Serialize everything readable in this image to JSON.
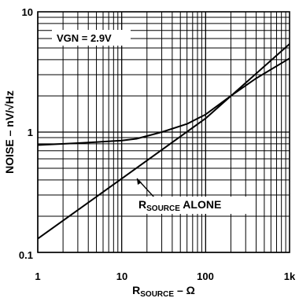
{
  "chart_data": {
    "type": "line",
    "x_scale": "log",
    "y_scale": "log",
    "xlim": [
      1,
      1000
    ],
    "ylim": [
      0.1,
      10
    ],
    "grid": true,
    "x_ticks": [
      "1",
      "10",
      "100",
      "1k"
    ],
    "y_ticks": [
      "0.1",
      "1",
      "10"
    ],
    "xlabel": {
      "main": "R",
      "sub": "SOURCE",
      "suffix": " – Ω"
    },
    "ylabel": "NOISE – nV/√Hz",
    "condition_label": "VGN = 2.9V",
    "annotation": {
      "main": "R",
      "sub": "SOURCE",
      "suffix": " ALONE"
    },
    "series": [
      {
        "x": [
          1,
          3,
          10,
          15,
          30,
          60,
          100,
          200,
          400,
          1000
        ],
        "y": [
          0.78,
          0.81,
          0.85,
          0.88,
          1.0,
          1.17,
          1.4,
          2.0,
          2.8,
          4.1
        ]
      },
      {
        "x": [
          1,
          10,
          100,
          1000
        ],
        "y": [
          0.13,
          0.41,
          1.3,
          5.4
        ]
      }
    ]
  }
}
